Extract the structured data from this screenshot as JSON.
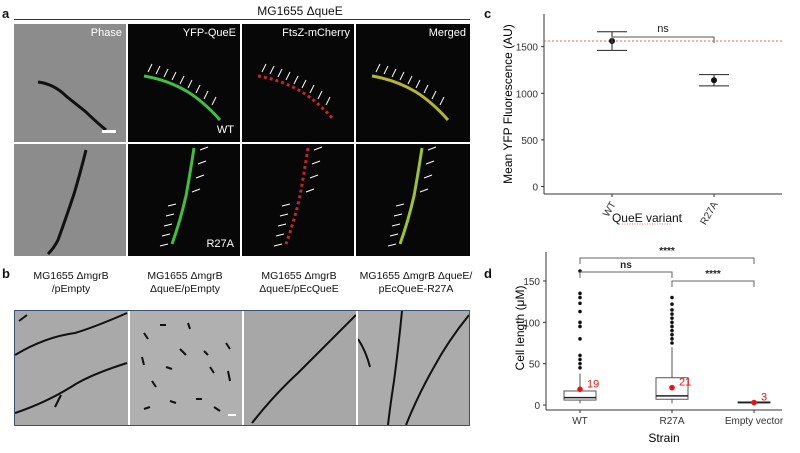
{
  "panels": {
    "a": "a",
    "b": "b",
    "c": "c",
    "d": "d"
  },
  "a": {
    "title": "MG1655 ΔqueE",
    "channels": [
      "Phase",
      "YFP-QueE",
      "FtsZ-mCherry",
      "Merged"
    ],
    "row_labels": [
      "WT",
      "R27A"
    ]
  },
  "b": {
    "headers": [
      [
        "MG1655 ΔmgrB",
        "/pEmpty"
      ],
      [
        "MG1655 ΔmgrB",
        "ΔqueE/pEmpty"
      ],
      [
        "MG1655 ΔmgrB",
        "ΔqueE/pEcQueE"
      ],
      [
        "MG1655 ΔmgrB ΔqueE/",
        "pEcQueE-R27A"
      ]
    ]
  },
  "chart_data": [
    {
      "type": "scatter",
      "panel": "c",
      "categories": [
        "WT",
        "R27A"
      ],
      "means": [
        1560,
        1140
      ],
      "error_bars": [
        [
          1460,
          1660
        ],
        [
          1080,
          1200
        ]
      ],
      "reference_line": 1560,
      "reference_color": "#e06060",
      "xlabel": "QueE variant",
      "ylabel": "Mean YFP Fluorescence (AU)",
      "yticks": [
        0,
        500,
        1000,
        1500
      ],
      "ylim": [
        -80,
        1850
      ],
      "significance": [
        {
          "from": "WT",
          "to": "R27A",
          "label": "ns"
        }
      ]
    },
    {
      "type": "box",
      "panel": "d",
      "categories": [
        "WT",
        "R27A",
        "Empty vector"
      ],
      "boxes": [
        {
          "q1": 6,
          "median": 9,
          "q3": 17,
          "whisker_low": 2,
          "whisker_high": 38,
          "outliers": [
            45,
            50,
            55,
            60,
            80,
            95,
            100,
            113,
            123,
            130,
            135,
            162
          ],
          "mean": 19,
          "n_label": "19"
        },
        {
          "q1": 7,
          "median": 11,
          "q3": 33,
          "whisker_low": 2,
          "whisker_high": 70,
          "outliers": [
            75,
            80,
            85,
            90,
            95,
            100,
            105,
            110,
            115,
            122,
            130
          ],
          "mean": 21,
          "n_label": "21"
        },
        {
          "q1": 2.5,
          "median": 3,
          "q3": 3.8,
          "whisker_low": 2,
          "whisker_high": 5,
          "outliers": [],
          "mean": 3,
          "n_label": "3"
        }
      ],
      "xlabel": "Strain",
      "ylabel": "Cell length (μM)",
      "yticks": [
        0,
        50,
        100,
        150
      ],
      "ylim": [
        -6,
        185
      ],
      "mean_color": "#ee1111",
      "significance": [
        {
          "from": "WT",
          "to": "R27A",
          "label": "ns"
        },
        {
          "from": "WT",
          "to": "Empty vector",
          "label": "****"
        },
        {
          "from": "R27A",
          "to": "Empty vector",
          "label": "****"
        }
      ]
    }
  ]
}
